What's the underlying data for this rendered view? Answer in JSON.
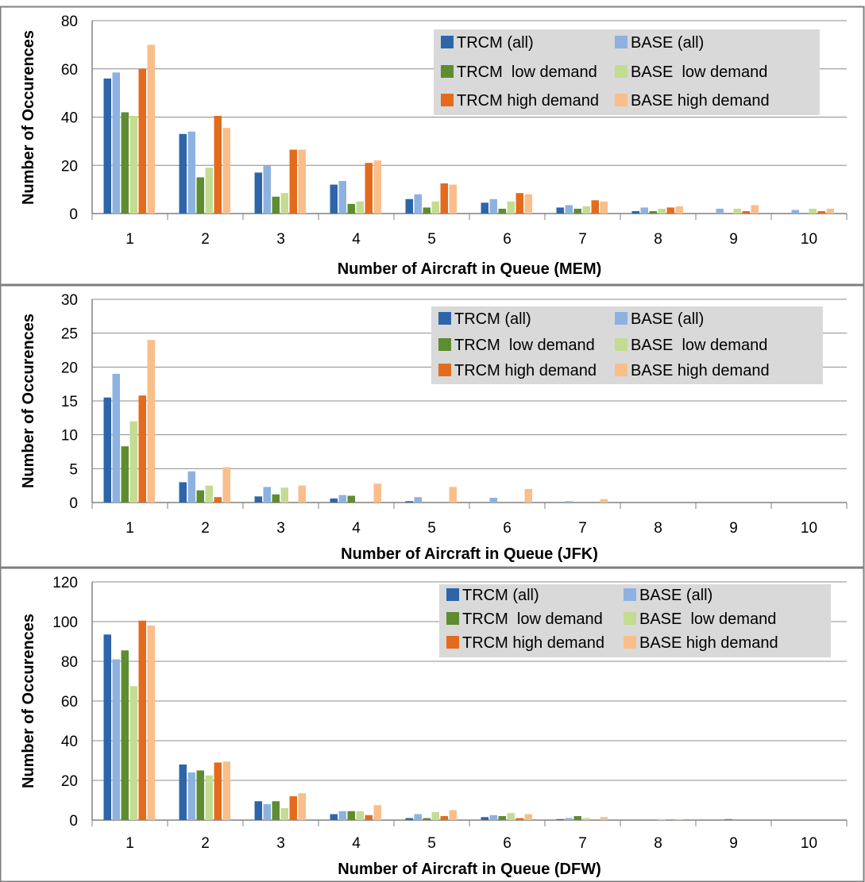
{
  "colors": {
    "frame": "#7f7f7f",
    "grid": "#8c8c8c",
    "axis": "#808080",
    "legend_bg": "#d9d9d9"
  },
  "series_colors": [
    "#2e65a8",
    "#8db2e0",
    "#5e8c31",
    "#c3dc92",
    "#e36b1d",
    "#f9be8a"
  ],
  "chart_data": [
    {
      "type": "bar",
      "xlabel": "Number of Aircraft in Queue (MEM)",
      "ylabel": "Number of Occurences",
      "ylim": [
        0,
        80
      ],
      "yticks": [
        0,
        20,
        40,
        60,
        80
      ],
      "grid": true,
      "legend_position": "top-right",
      "categories": [
        "1",
        "2",
        "3",
        "4",
        "5",
        "6",
        "7",
        "8",
        "9",
        "10"
      ],
      "series": [
        {
          "name": "TRCM (all)",
          "values": [
            56,
            33,
            17,
            12,
            6,
            4.5,
            2.5,
            1,
            0,
            0
          ]
        },
        {
          "name": "BASE (all)",
          "values": [
            58.5,
            34,
            20,
            13.5,
            8,
            6,
            3.5,
            2.5,
            2,
            1.5
          ]
        },
        {
          "name": "TRCM  low demand",
          "values": [
            42,
            15,
            7,
            4,
            2.5,
            2,
            2,
            1,
            0,
            0
          ]
        },
        {
          "name": "BASE  low demand",
          "values": [
            40.5,
            19,
            8.5,
            5,
            5,
            5,
            3,
            2,
            2,
            2
          ]
        },
        {
          "name": "TRCM high demand",
          "values": [
            60,
            40.5,
            26.5,
            21,
            12.5,
            8.5,
            5.5,
            2.5,
            1,
            1
          ]
        },
        {
          "name": "BASE high demand",
          "values": [
            70,
            35.5,
            26.5,
            22,
            12,
            8,
            5,
            3,
            3.5,
            2
          ]
        }
      ]
    },
    {
      "type": "bar",
      "xlabel": "Number of Aircraft in Queue (JFK)",
      "ylabel": "Number of Occurences",
      "ylim": [
        0,
        30
      ],
      "yticks": [
        0,
        5,
        10,
        15,
        20,
        25,
        30
      ],
      "grid": true,
      "legend_position": "top-right",
      "categories": [
        "1",
        "2",
        "3",
        "4",
        "5",
        "6",
        "7",
        "8",
        "9",
        "10"
      ],
      "series": [
        {
          "name": "TRCM (all)",
          "values": [
            15.5,
            3,
            0.9,
            0.6,
            0.2,
            0,
            0,
            0,
            0,
            0
          ]
        },
        {
          "name": "BASE (all)",
          "values": [
            19,
            4.6,
            2.3,
            1.1,
            0.8,
            0.7,
            0.2,
            0,
            0,
            0
          ]
        },
        {
          "name": "TRCM  low demand",
          "values": [
            8.3,
            1.8,
            1.2,
            1,
            0,
            0,
            0,
            0,
            0,
            0
          ]
        },
        {
          "name": "BASE  low demand",
          "values": [
            12,
            2.5,
            2.2,
            0,
            0,
            0,
            0,
            0,
            0,
            0
          ]
        },
        {
          "name": "TRCM high demand",
          "values": [
            15.8,
            0.8,
            0,
            0,
            0,
            0,
            0,
            0,
            0,
            0
          ]
        },
        {
          "name": "BASE high demand",
          "values": [
            24,
            5.2,
            2.5,
            2.8,
            2.3,
            2,
            0.5,
            0,
            0,
            0
          ]
        }
      ]
    },
    {
      "type": "bar",
      "xlabel": "Number of Aircraft in Queue (DFW)",
      "ylabel": "Number of Occurences",
      "ylim": [
        0,
        120
      ],
      "yticks": [
        0,
        20,
        40,
        60,
        80,
        100,
        120
      ],
      "grid": true,
      "legend_position": "top-right",
      "categories": [
        "1",
        "2",
        "3",
        "4",
        "5",
        "6",
        "7",
        "8",
        "9",
        "10"
      ],
      "series": [
        {
          "name": "TRCM (all)",
          "values": [
            93.5,
            28,
            9.5,
            3,
            1,
            1.5,
            0.5,
            0,
            0,
            0
          ]
        },
        {
          "name": "BASE (all)",
          "values": [
            81,
            24,
            8,
            4.5,
            3,
            2.5,
            1,
            0,
            0,
            0
          ]
        },
        {
          "name": "TRCM  low demand",
          "values": [
            85.5,
            25,
            9.5,
            4.5,
            1,
            2,
            2,
            0,
            0.5,
            0
          ]
        },
        {
          "name": "BASE  low demand",
          "values": [
            67.5,
            22.5,
            6,
            4.5,
            4,
            3.5,
            1,
            0.5,
            0,
            0
          ]
        },
        {
          "name": "TRCM high demand",
          "values": [
            100.5,
            29,
            12,
            2.5,
            2,
            1,
            0,
            0,
            0,
            0
          ]
        },
        {
          "name": "BASE high demand",
          "values": [
            98,
            29.5,
            13.5,
            7.5,
            5,
            3,
            1.5,
            0.5,
            0,
            0
          ]
        }
      ]
    }
  ]
}
